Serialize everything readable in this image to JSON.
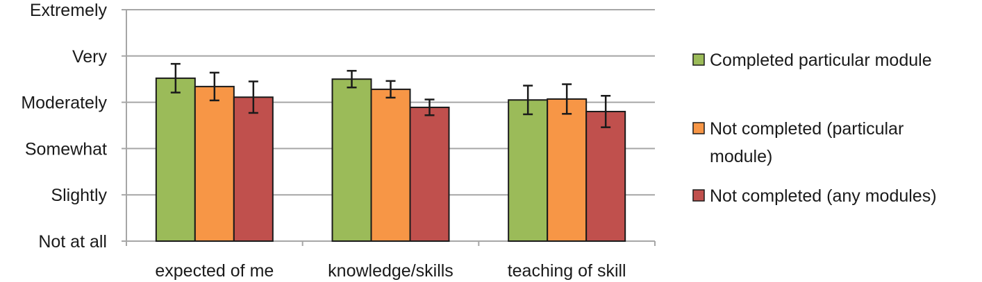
{
  "chart_data": {
    "type": "bar",
    "title": "",
    "xlabel": "",
    "ylabel": "",
    "ylim": [
      1,
      6
    ],
    "y_tick_labels": [
      "Not at all",
      "Slightly",
      "Somewhat",
      "Moderately",
      "Very",
      "Extremely"
    ],
    "categories": [
      "expected of me",
      "knowledge/skills",
      "teaching of skill"
    ],
    "grid": true,
    "legend_position": "right",
    "series": [
      {
        "name": "Completed particular module",
        "color": "#9BBB59",
        "values": [
          4.52,
          4.5,
          4.05
        ],
        "errors": [
          0.31,
          0.18,
          0.31
        ]
      },
      {
        "name": "Not completed (particular module)",
        "color": "#F79646",
        "values": [
          4.34,
          4.28,
          4.07
        ],
        "errors": [
          0.3,
          0.18,
          0.32
        ]
      },
      {
        "name": "Not completed (any modules)",
        "color": "#C0504D",
        "values": [
          4.11,
          3.89,
          3.8
        ],
        "errors": [
          0.34,
          0.17,
          0.34
        ]
      }
    ],
    "legend_lines": [
      [
        "Completed particular module"
      ],
      [
        "Not completed (particular",
        "module)"
      ],
      [
        "Not completed (any modules)"
      ]
    ]
  }
}
